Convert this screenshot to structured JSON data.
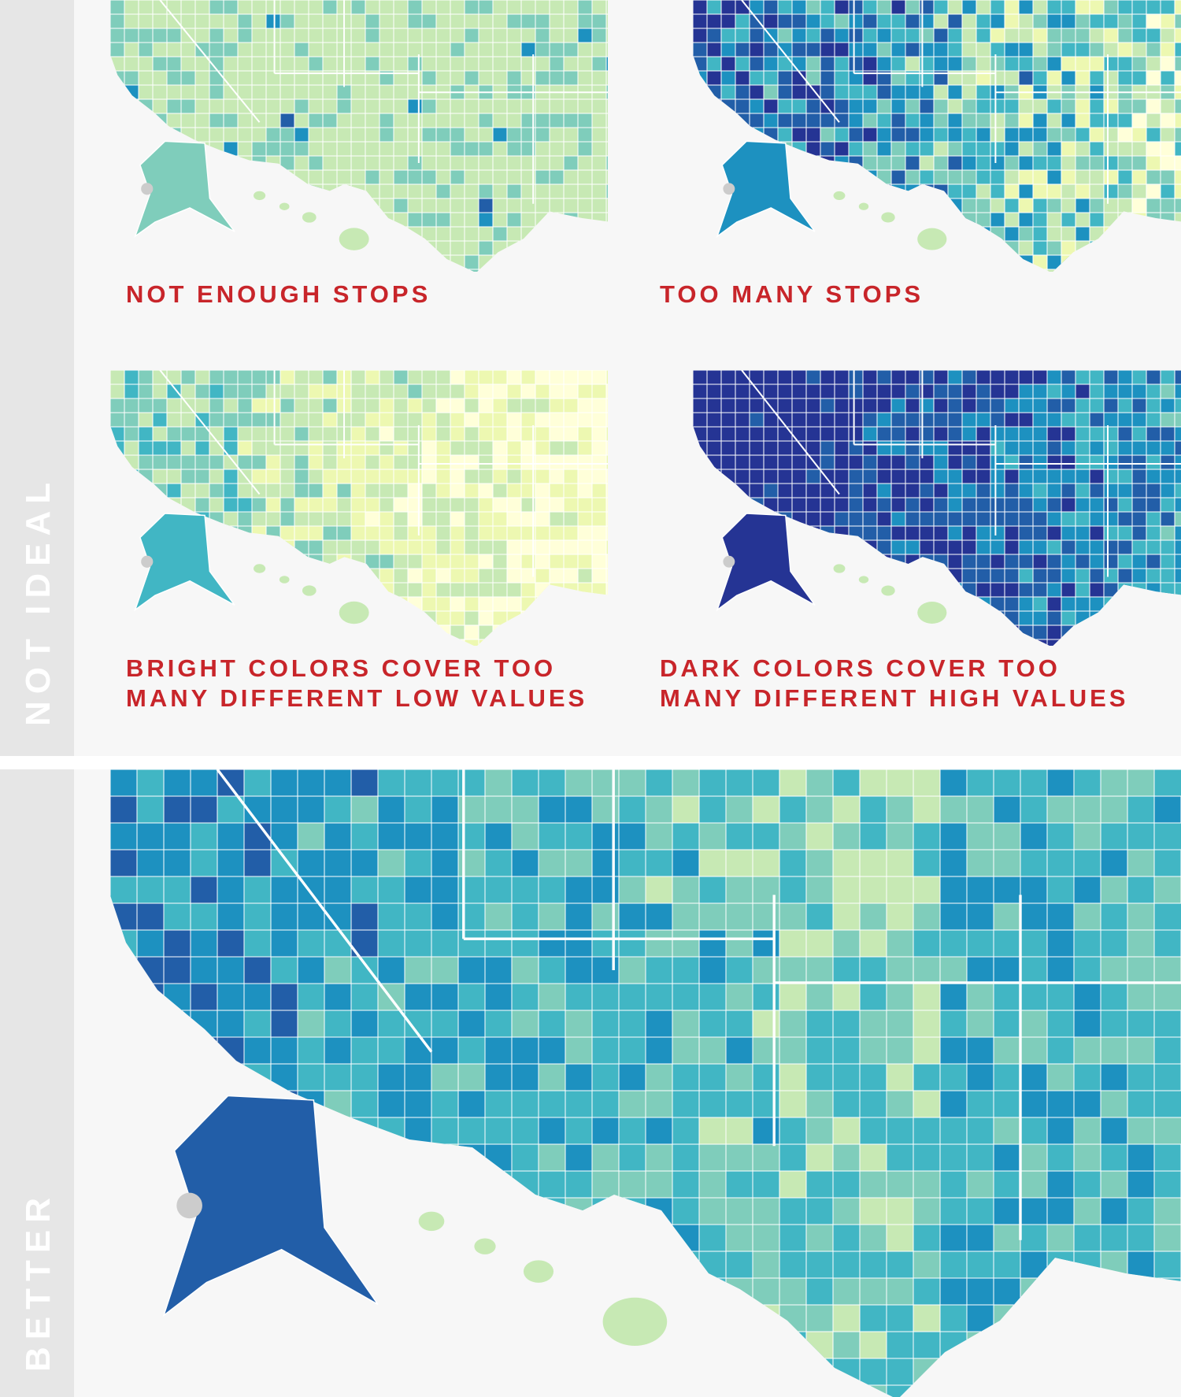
{
  "sections": {
    "top_label": "NOT IDEAL",
    "bottom_label": "BETTER"
  },
  "panels": [
    {
      "id": "not-enough-stops",
      "caption_lines": [
        "NOT ENOUGH STOPS"
      ],
      "palette": "light"
    },
    {
      "id": "too-many-stops",
      "caption_lines": [
        "TOO MANY STOPS"
      ],
      "palette": "busy"
    },
    {
      "id": "bright-colors",
      "caption_lines": [
        "BRIGHT COLORS COVER TOO",
        "MANY DIFFERENT LOW VALUES"
      ],
      "palette": "bright"
    },
    {
      "id": "dark-colors",
      "caption_lines": [
        "DARK COLORS COVER TOO",
        "MANY DIFFERENT HIGH VALUES"
      ],
      "palette": "dark"
    },
    {
      "id": "better",
      "caption_lines": [],
      "palette": "better"
    }
  ],
  "colors": {
    "caption_red": "#c8252a",
    "background": "#f7f7f7",
    "band_gray": "#e6e6e6",
    "missing_gray": "#cccccc",
    "ramp": [
      "#ffffd9",
      "#edf8b1",
      "#c7e9b4",
      "#7fcdbb",
      "#41b6c4",
      "#1d91c0",
      "#225ea8",
      "#253494",
      "#081d58"
    ]
  }
}
